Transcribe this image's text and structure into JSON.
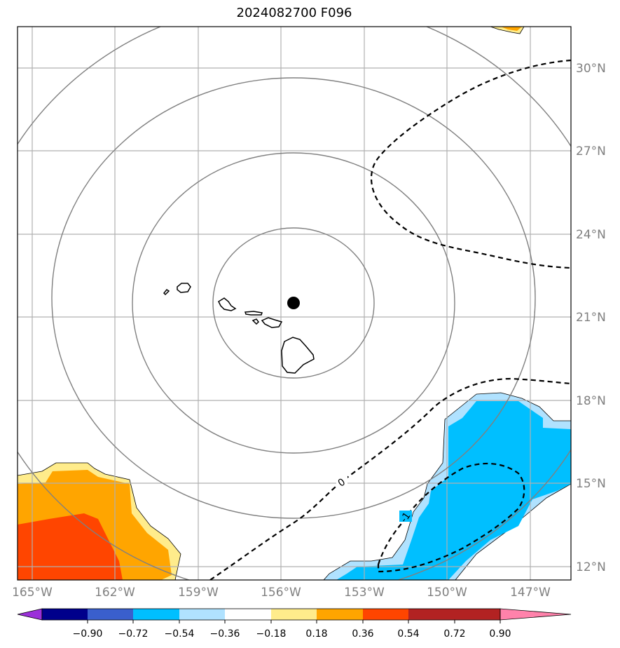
{
  "title": "2024082700 F096",
  "map": {
    "lon_labels": [
      "165°W",
      "162°W",
      "159°W",
      "156°W",
      "153°W",
      "150°W",
      "147°W"
    ],
    "lat_labels": [
      "12°N",
      "15°N",
      "18°N",
      "21°N",
      "24°N",
      "27°N",
      "30°N"
    ],
    "center_marker": {
      "lon": -155.5,
      "lat": 21.5
    },
    "contour_labels": [
      "0",
      "-1"
    ]
  },
  "colorbar": {
    "ticks": [
      "−0.90",
      "−0.72",
      "−0.54",
      "−0.36",
      "−0.18",
      "0.18",
      "0.36",
      "0.54",
      "0.72",
      "0.90"
    ],
    "colors": [
      "#9b30d9",
      "#00008b",
      "#3a5fcd",
      "#00bfff",
      "#b0e2ff",
      "#ffffff",
      "#ffec8b",
      "#ffa500",
      "#ff4500",
      "#b22222",
      "#ff82ab"
    ]
  }
}
